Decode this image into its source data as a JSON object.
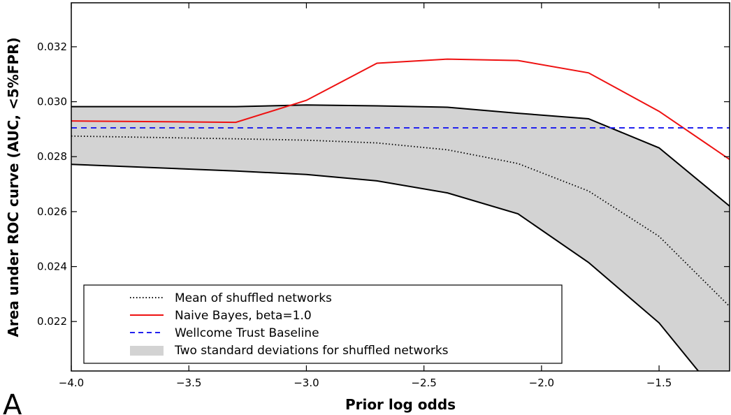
{
  "panel_label": "A",
  "chart_data": {
    "type": "line",
    "title": "",
    "xlabel": "Prior log odds",
    "ylabel": "Area under ROC curve (AUC, <5%FPR)",
    "xlim": [
      -4.0,
      -1.2
    ],
    "ylim": [
      0.0202,
      0.0336
    ],
    "x_ticks": [
      -4.0,
      -3.5,
      -3.0,
      -2.5,
      -2.0,
      -1.5
    ],
    "x_tick_labels": [
      "−4.0",
      "−3.5",
      "−3.0",
      "−2.5",
      "−2.0",
      "−1.5"
    ],
    "y_ticks": [
      0.022,
      0.024,
      0.026,
      0.028,
      0.03,
      0.032
    ],
    "y_tick_labels": [
      "0.022",
      "0.024",
      "0.026",
      "0.028",
      "0.030",
      "0.032"
    ],
    "grid": false,
    "legend_position": "lower-left",
    "series": [
      {
        "name": "Mean of shuffled networks",
        "style": "dotted",
        "color": "#000000",
        "x": [
          -4.0,
          -3.3,
          -3.0,
          -2.7,
          -2.4,
          -2.1,
          -1.8,
          -1.5,
          -1.2
        ],
        "y": [
          0.02875,
          0.02865,
          0.0286,
          0.0285,
          0.02825,
          0.02775,
          0.02675,
          0.0251,
          0.02255
        ]
      },
      {
        "name": "Naive Bayes, beta=1.0",
        "style": "solid",
        "color": "#ee1111",
        "x": [
          -4.0,
          -3.3,
          -3.0,
          -2.7,
          -2.4,
          -2.1,
          -1.8,
          -1.5,
          -1.2
        ],
        "y": [
          0.0293,
          0.02925,
          0.03005,
          0.0314,
          0.03155,
          0.0315,
          0.03105,
          0.02965,
          0.0279
        ]
      },
      {
        "name": "Wellcome Trust Baseline",
        "style": "dashed",
        "color": "#2222ee",
        "x": [
          -4.0,
          -1.2
        ],
        "y": [
          0.02905,
          0.02905
        ]
      }
    ],
    "band": {
      "name": "Two standard deviations for shuffled networks",
      "color": "#d3d3d3",
      "edge_color": "#000000",
      "x": [
        -4.0,
        -3.3,
        -3.0,
        -2.7,
        -2.4,
        -2.1,
        -1.8,
        -1.5,
        -1.2
      ],
      "upper": [
        0.02982,
        0.02982,
        0.02988,
        0.02985,
        0.0298,
        0.02958,
        0.02938,
        0.02832,
        0.0262
      ],
      "lower": [
        0.02772,
        0.02748,
        0.02735,
        0.02712,
        0.02668,
        0.02592,
        0.02415,
        0.02195,
        0.0188
      ]
    }
  }
}
